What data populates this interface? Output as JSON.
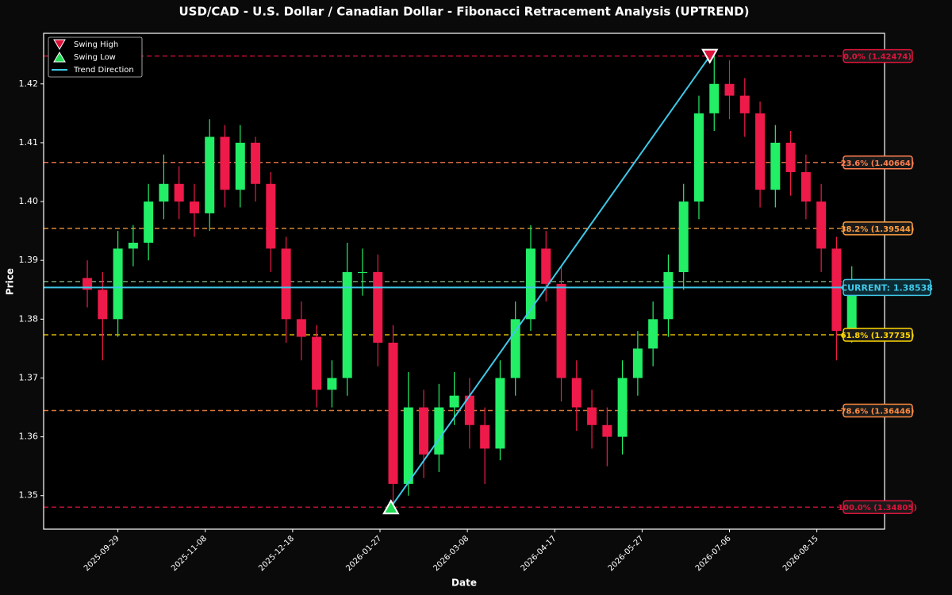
{
  "chart_data": {
    "type": "candlestick",
    "title": "USD/CAD - U.S. Dollar / Canadian Dollar - Fibonacci Retracement Analysis (UPTREND)",
    "xlabel": "Date",
    "ylabel": "Price",
    "x": [
      "2025-09-15",
      "2025-09-22",
      "2025-09-29",
      "2025-10-06",
      "2025-10-13",
      "2025-10-20",
      "2025-10-27",
      "2025-11-03",
      "2025-11-10",
      "2025-11-17",
      "2025-11-24",
      "2025-12-01",
      "2025-12-08",
      "2025-12-15",
      "2025-12-22",
      "2025-12-29",
      "2026-01-05",
      "2026-01-12",
      "2026-01-19",
      "2026-01-26",
      "2026-02-02",
      "2026-02-09",
      "2026-02-16",
      "2026-02-23",
      "2026-03-02",
      "2026-03-09",
      "2026-03-16",
      "2026-03-23",
      "2026-03-30",
      "2026-04-06",
      "2026-04-13",
      "2026-04-20",
      "2026-04-27",
      "2026-05-04",
      "2026-05-11",
      "2026-05-18",
      "2026-05-25",
      "2026-06-01",
      "2026-06-08",
      "2026-06-15",
      "2026-06-22",
      "2026-06-29",
      "2026-07-06",
      "2026-07-13",
      "2026-07-20",
      "2026-07-27",
      "2026-08-03",
      "2026-08-10",
      "2026-08-17",
      "2026-08-24",
      "2026-08-31"
    ],
    "open": [
      1.387,
      1.385,
      1.38,
      1.392,
      1.393,
      1.4,
      1.403,
      1.4,
      1.398,
      1.411,
      1.402,
      1.41,
      1.403,
      1.392,
      1.38,
      1.377,
      1.368,
      1.37,
      1.388,
      1.388,
      1.376,
      1.352,
      1.365,
      1.357,
      1.365,
      1.367,
      1.362,
      1.358,
      1.37,
      1.38,
      1.392,
      1.386,
      1.37,
      1.365,
      1.362,
      1.36,
      1.37,
      1.375,
      1.38,
      1.388,
      1.4,
      1.415,
      1.42,
      1.418,
      1.415,
      1.402,
      1.41,
      1.405,
      1.4,
      1.392,
      1.378
    ],
    "high": [
      1.39,
      1.388,
      1.395,
      1.396,
      1.403,
      1.408,
      1.406,
      1.403,
      1.414,
      1.413,
      1.413,
      1.411,
      1.405,
      1.394,
      1.383,
      1.379,
      1.373,
      1.393,
      1.392,
      1.391,
      1.379,
      1.371,
      1.368,
      1.369,
      1.371,
      1.37,
      1.365,
      1.373,
      1.383,
      1.396,
      1.395,
      1.389,
      1.373,
      1.368,
      1.365,
      1.373,
      1.378,
      1.383,
      1.391,
      1.403,
      1.418,
      1.42474,
      1.424,
      1.421,
      1.417,
      1.413,
      1.412,
      1.408,
      1.403,
      1.394,
      1.389
    ],
    "low": [
      1.382,
      1.373,
      1.377,
      1.389,
      1.39,
      1.397,
      1.397,
      1.394,
      1.395,
      1.399,
      1.399,
      1.4,
      1.388,
      1.376,
      1.373,
      1.365,
      1.365,
      1.367,
      1.384,
      1.372,
      1.34805,
      1.35,
      1.353,
      1.354,
      1.362,
      1.358,
      1.352,
      1.356,
      1.367,
      1.378,
      1.383,
      1.366,
      1.361,
      1.358,
      1.355,
      1.357,
      1.367,
      1.372,
      1.377,
      1.385,
      1.397,
      1.412,
      1.414,
      1.411,
      1.399,
      1.399,
      1.401,
      1.397,
      1.388,
      1.373,
      1.376
    ],
    "close": [
      1.385,
      1.38,
      1.392,
      1.393,
      1.4,
      1.403,
      1.4,
      1.398,
      1.411,
      1.402,
      1.41,
      1.403,
      1.392,
      1.38,
      1.377,
      1.368,
      1.37,
      1.388,
      1.388,
      1.376,
      1.352,
      1.365,
      1.357,
      1.365,
      1.367,
      1.362,
      1.358,
      1.37,
      1.38,
      1.392,
      1.386,
      1.37,
      1.365,
      1.362,
      1.36,
      1.37,
      1.375,
      1.38,
      1.388,
      1.4,
      1.415,
      1.42,
      1.418,
      1.415,
      1.402,
      1.41,
      1.405,
      1.4,
      1.392,
      1.378,
      1.385
    ],
    "up_color": "#22ee66",
    "down_color": "#ee1a4a",
    "xlim": [
      "2025-08-26",
      "2026-09-15"
    ],
    "ylim": [
      1.3443,
      1.4286
    ],
    "xticks": [
      "2025-09-29",
      "2025-11-08",
      "2025-12-18",
      "2026-01-27",
      "2026-03-08",
      "2026-04-17",
      "2026-05-27",
      "2026-07-06",
      "2026-08-15"
    ],
    "yticks": [
      1.35,
      1.36,
      1.37,
      1.38,
      1.39,
      {
        "value": 1.4,
        "label": "1.40"
      },
      1.41,
      1.42
    ],
    "fib_levels": [
      {
        "label": "0.0% (1.42474)",
        "value": 1.42474,
        "color": "#dc143c"
      },
      {
        "label": "23.6% (1.40664)",
        "value": 1.40664,
        "color": "#ff7f50"
      },
      {
        "label": "38.2% (1.39544)",
        "value": 1.39544,
        "color": "#ffa040"
      },
      {
        "value": 1.3864,
        "color": "#88bb88"
      },
      {
        "label": "61.8% (1.37735)",
        "value": 1.37735,
        "color": "#ffd700"
      },
      {
        "label": "78.6% (1.36446)",
        "value": 1.36446,
        "color": "#ff8c42"
      },
      {
        "label": "100.0% (1.34805)",
        "value": 1.34805,
        "color": "#dc143c"
      }
    ],
    "current": {
      "label": "CURRENT: 1.38538",
      "value": 1.38538,
      "color": "#3fc8e8"
    },
    "swing_high": {
      "x": "2026-06-27",
      "value": 1.42474,
      "color": "#dc143c"
    },
    "swing_low": {
      "x": "2026-02-01",
      "value": 1.34805,
      "color": "#22dd55"
    },
    "trend_color": "#3fc8e8",
    "legend": [
      "Swing High",
      "Swing Low",
      "Trend Direction"
    ],
    "legend_loc": "upper left"
  }
}
